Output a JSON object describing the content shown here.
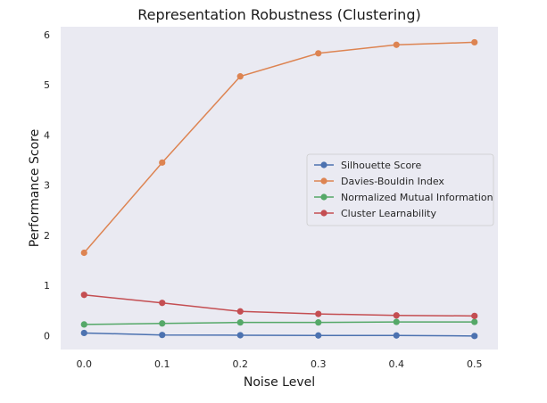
{
  "chart_data": {
    "type": "line",
    "title": "Representation Robustness (Clustering)",
    "xlabel": "Noise Level",
    "ylabel": "Performance Score",
    "x": [
      0.0,
      0.1,
      0.2,
      0.3,
      0.4,
      0.5
    ],
    "x_tick_labels": [
      "0.0",
      "0.1",
      "0.2",
      "0.3",
      "0.4",
      "0.5"
    ],
    "y_ticks": [
      0,
      1,
      2,
      3,
      4,
      5,
      6
    ],
    "y_tick_labels": [
      "0",
      "1",
      "2",
      "3",
      "4",
      "5",
      "6"
    ],
    "xlim": [
      -0.03,
      0.53
    ],
    "ylim": [
      -0.28,
      6.16
    ],
    "grid": false,
    "legend_position": "center-right",
    "background_color": "#eaeaf2",
    "series": [
      {
        "name": "Silhouette Score",
        "color": "#4c72b0",
        "values": [
          0.05,
          0.01,
          0.005,
          0.0,
          0.0,
          -0.01
        ]
      },
      {
        "name": "Davies-Bouldin Index",
        "color": "#dd8452",
        "values": [
          1.65,
          3.45,
          5.17,
          5.63,
          5.8,
          5.85
        ]
      },
      {
        "name": "Normalized Mutual Information",
        "color": "#55a868",
        "values": [
          0.22,
          0.24,
          0.26,
          0.26,
          0.27,
          0.27
        ]
      },
      {
        "name": "Cluster Learnability",
        "color": "#c44e52",
        "values": [
          0.81,
          0.65,
          0.48,
          0.43,
          0.4,
          0.39
        ]
      }
    ]
  }
}
